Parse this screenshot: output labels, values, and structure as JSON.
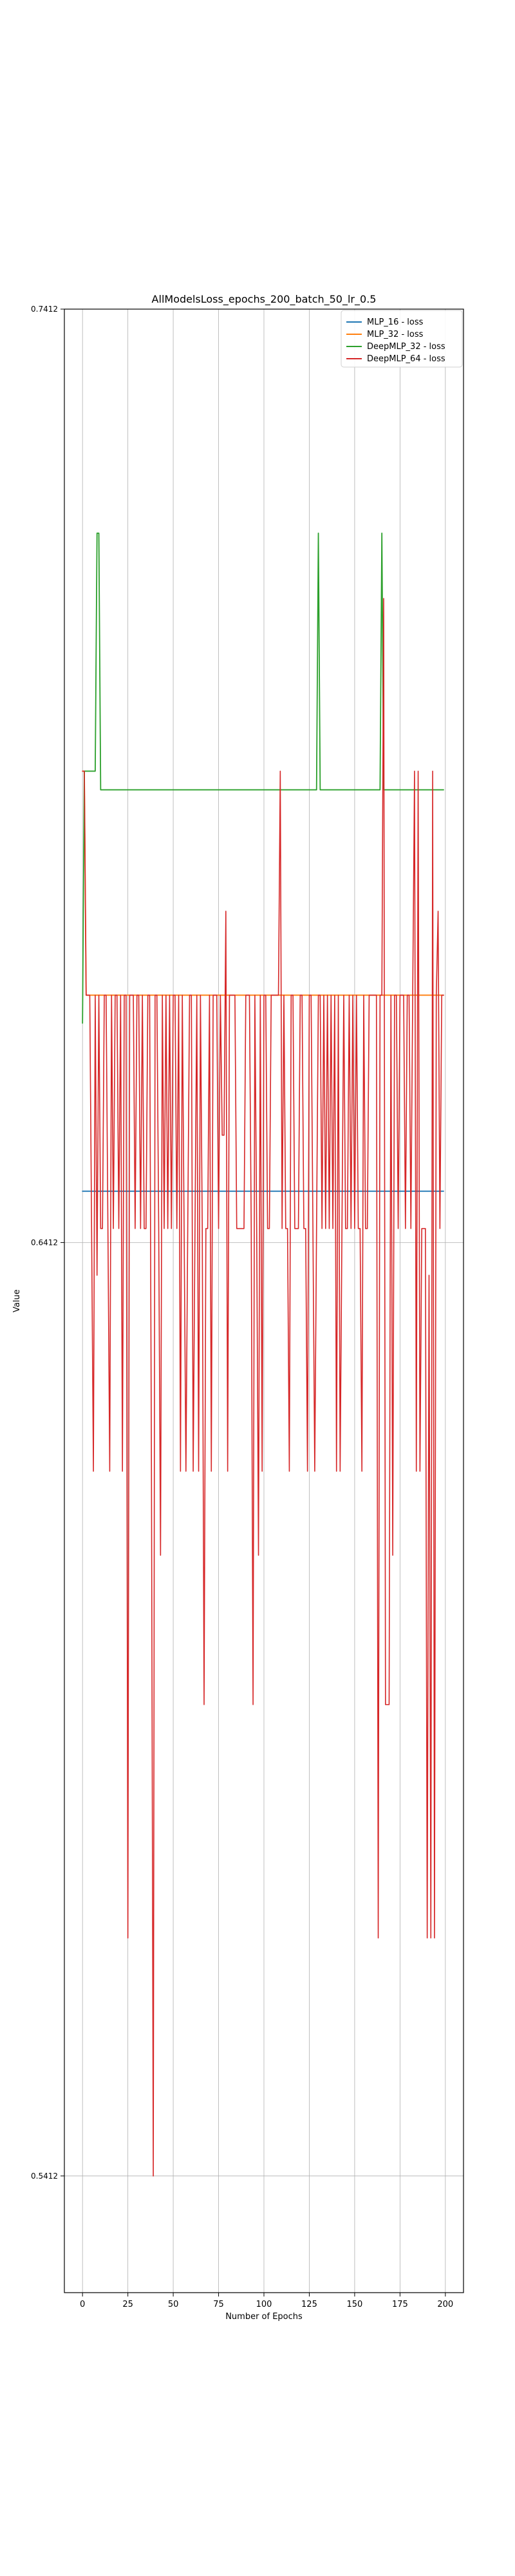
{
  "chart_data": {
    "type": "line",
    "title": "AllModelsLoss_epochs_200_batch_50_lr_0.5",
    "xlabel": "Number of Epochs",
    "ylabel": "Value",
    "xlim": [
      -10,
      210
    ],
    "ylim": [
      0.5287,
      0.7412
    ],
    "x_ticks": [
      0,
      25,
      50,
      75,
      100,
      125,
      150,
      175,
      200
    ],
    "x_tick_labels": [
      "0",
      "25",
      "50",
      "75",
      "100",
      "125",
      "150",
      "175",
      "200"
    ],
    "y_ticks": [
      0.5412,
      0.6412,
      0.7412
    ],
    "y_tick_labels": [
      "0.5412",
      "0.6412",
      "0.7412"
    ],
    "grid": true,
    "legend_position": "top-right",
    "series": [
      {
        "name": "MLP_16 - loss",
        "color": "#1f77b4",
        "segments": [
          [
            0,
            0.6467
          ],
          [
            199,
            0.6467
          ]
        ]
      },
      {
        "name": "MLP_32 - loss",
        "color": "#ff7f0e",
        "segments": [
          [
            0,
            0.6917
          ],
          [
            1,
            0.6917
          ],
          [
            2,
            0.6677
          ],
          [
            199,
            0.6677
          ]
        ]
      },
      {
        "name": "DeepMLP_32 - loss",
        "color": "#2ca02c",
        "segments": [
          [
            0,
            0.6647
          ],
          [
            1,
            0.6917
          ],
          [
            7,
            0.6917
          ],
          [
            8,
            0.7172
          ],
          [
            9,
            0.7172
          ],
          [
            10,
            0.6897
          ],
          [
            129,
            0.6897
          ],
          [
            130,
            0.7172
          ],
          [
            131,
            0.6897
          ],
          [
            164,
            0.6897
          ],
          [
            165,
            0.7172
          ],
          [
            166,
            0.6897
          ],
          [
            199,
            0.6897
          ]
        ]
      },
      {
        "name": "DeepMLP_64 - loss",
        "color": "#d62728",
        "segments": [
          [
            0,
            0.6917
          ],
          [
            1,
            0.6917
          ],
          [
            2,
            0.6677
          ],
          [
            3,
            0.6677
          ],
          [
            4,
            0.6677
          ],
          [
            5,
            0.6427
          ],
          [
            6,
            0.6167
          ],
          [
            7,
            0.6677
          ],
          [
            8,
            0.6377
          ],
          [
            9,
            0.6677
          ],
          [
            10,
            0.6427
          ],
          [
            11,
            0.6427
          ],
          [
            12,
            0.6677
          ],
          [
            13,
            0.6677
          ],
          [
            14,
            0.6427
          ],
          [
            15,
            0.6167
          ],
          [
            16,
            0.6677
          ],
          [
            17,
            0.6427
          ],
          [
            18,
            0.6677
          ],
          [
            19,
            0.6677
          ],
          [
            20,
            0.6427
          ],
          [
            21,
            0.6677
          ],
          [
            22,
            0.6167
          ],
          [
            23,
            0.6677
          ],
          [
            24,
            0.6677
          ],
          [
            25,
            0.5667
          ],
          [
            26,
            0.6677
          ],
          [
            27,
            0.6677
          ],
          [
            28,
            0.6677
          ],
          [
            29,
            0.6427
          ],
          [
            30,
            0.6677
          ],
          [
            31,
            0.6677
          ],
          [
            32,
            0.6427
          ],
          [
            33,
            0.6677
          ],
          [
            34,
            0.6427
          ],
          [
            35,
            0.6427
          ],
          [
            36,
            0.6677
          ],
          [
            37,
            0.6677
          ],
          [
            38,
            0.6167
          ],
          [
            39,
            0.5412
          ],
          [
            40,
            0.6677
          ],
          [
            41,
            0.6677
          ],
          [
            42,
            0.6427
          ],
          [
            43,
            0.6077
          ],
          [
            44,
            0.6677
          ],
          [
            45,
            0.6427
          ],
          [
            46,
            0.6677
          ],
          [
            47,
            0.6427
          ],
          [
            48,
            0.6677
          ],
          [
            49,
            0.6427
          ],
          [
            50,
            0.6677
          ],
          [
            51,
            0.6677
          ],
          [
            52,
            0.6427
          ],
          [
            53,
            0.6677
          ],
          [
            54,
            0.6167
          ],
          [
            55,
            0.6677
          ],
          [
            56,
            0.6427
          ],
          [
            57,
            0.6167
          ],
          [
            58,
            0.6427
          ],
          [
            59,
            0.6677
          ],
          [
            60,
            0.6677
          ],
          [
            61,
            0.6167
          ],
          [
            62,
            0.6427
          ],
          [
            63,
            0.6677
          ],
          [
            64,
            0.6167
          ],
          [
            65,
            0.6677
          ],
          [
            66,
            0.6427
          ],
          [
            67,
            0.5917
          ],
          [
            68,
            0.6427
          ],
          [
            69,
            0.6427
          ],
          [
            70,
            0.6677
          ],
          [
            71,
            0.6167
          ],
          [
            72,
            0.6677
          ],
          [
            73,
            0.6677
          ],
          [
            74,
            0.6677
          ],
          [
            75,
            0.6427
          ],
          [
            76,
            0.6677
          ],
          [
            77,
            0.6527
          ],
          [
            78,
            0.6527
          ],
          [
            79,
            0.6767
          ],
          [
            80,
            0.6167
          ],
          [
            81,
            0.6677
          ],
          [
            82,
            0.6677
          ],
          [
            83,
            0.6677
          ],
          [
            84,
            0.6677
          ],
          [
            85,
            0.6427
          ],
          [
            86,
            0.6427
          ],
          [
            87,
            0.6427
          ],
          [
            88,
            0.6427
          ],
          [
            89,
            0.6427
          ],
          [
            90,
            0.6677
          ],
          [
            91,
            0.6677
          ],
          [
            92,
            0.6677
          ],
          [
            93,
            0.6427
          ],
          [
            94,
            0.5917
          ],
          [
            95,
            0.6677
          ],
          [
            96,
            0.6427
          ],
          [
            97,
            0.6077
          ],
          [
            98,
            0.6677
          ],
          [
            99,
            0.6167
          ],
          [
            100,
            0.6677
          ],
          [
            101,
            0.6677
          ],
          [
            102,
            0.6427
          ],
          [
            103,
            0.6427
          ],
          [
            104,
            0.6677
          ],
          [
            105,
            0.6677
          ],
          [
            106,
            0.6677
          ],
          [
            107,
            0.6677
          ],
          [
            108,
            0.6677
          ],
          [
            109,
            0.6917
          ],
          [
            110,
            0.6427
          ],
          [
            111,
            0.6677
          ],
          [
            112,
            0.6427
          ],
          [
            113,
            0.6427
          ],
          [
            114,
            0.6167
          ],
          [
            115,
            0.6677
          ],
          [
            116,
            0.6677
          ],
          [
            117,
            0.6427
          ],
          [
            118,
            0.6427
          ],
          [
            119,
            0.6427
          ],
          [
            120,
            0.6677
          ],
          [
            121,
            0.6677
          ],
          [
            122,
            0.6427
          ],
          [
            123,
            0.6427
          ],
          [
            124,
            0.6167
          ],
          [
            125,
            0.6677
          ],
          [
            126,
            0.6677
          ],
          [
            127,
            0.6427
          ],
          [
            128,
            0.6167
          ],
          [
            129,
            0.6427
          ],
          [
            130,
            0.6677
          ],
          [
            131,
            0.6677
          ],
          [
            132,
            0.6427
          ],
          [
            133,
            0.6677
          ],
          [
            134,
            0.6427
          ],
          [
            135,
            0.6677
          ],
          [
            136,
            0.6427
          ],
          [
            137,
            0.6677
          ],
          [
            138,
            0.6427
          ],
          [
            139,
            0.6677
          ],
          [
            140,
            0.6167
          ],
          [
            141,
            0.6677
          ],
          [
            142,
            0.6167
          ],
          [
            143,
            0.6427
          ],
          [
            144,
            0.6677
          ],
          [
            145,
            0.6427
          ],
          [
            146,
            0.6427
          ],
          [
            147,
            0.6677
          ],
          [
            148,
            0.6427
          ],
          [
            149,
            0.6677
          ],
          [
            150,
            0.6427
          ],
          [
            151,
            0.6677
          ],
          [
            152,
            0.6427
          ],
          [
            153,
            0.6427
          ],
          [
            154,
            0.6167
          ],
          [
            155,
            0.6677
          ],
          [
            156,
            0.6427
          ],
          [
            157,
            0.6427
          ],
          [
            158,
            0.6677
          ],
          [
            159,
            0.6677
          ],
          [
            160,
            0.6677
          ],
          [
            161,
            0.6677
          ],
          [
            162,
            0.6677
          ],
          [
            163,
            0.5667
          ],
          [
            164,
            0.6677
          ],
          [
            165,
            0.6677
          ],
          [
            166,
            0.7102
          ],
          [
            167,
            0.5917
          ],
          [
            168,
            0.5917
          ],
          [
            169,
            0.5917
          ],
          [
            170,
            0.6677
          ],
          [
            171,
            0.6077
          ],
          [
            172,
            0.6677
          ],
          [
            173,
            0.6677
          ],
          [
            174,
            0.6427
          ],
          [
            175,
            0.6677
          ],
          [
            176,
            0.6677
          ],
          [
            177,
            0.6677
          ],
          [
            178,
            0.6427
          ],
          [
            179,
            0.6677
          ],
          [
            180,
            0.6677
          ],
          [
            181,
            0.6427
          ],
          [
            182,
            0.6677
          ],
          [
            183,
            0.6917
          ],
          [
            184,
            0.6167
          ],
          [
            185,
            0.6917
          ],
          [
            186,
            0.6167
          ],
          [
            187,
            0.6427
          ],
          [
            188,
            0.6427
          ],
          [
            189,
            0.6427
          ],
          [
            190,
            0.5667
          ],
          [
            191,
            0.6377
          ],
          [
            192,
            0.5667
          ],
          [
            193,
            0.6917
          ],
          [
            194,
            0.5667
          ],
          [
            195,
            0.6677
          ],
          [
            196,
            0.6767
          ],
          [
            197,
            0.6427
          ],
          [
            198,
            0.6677
          ],
          [
            199,
            0.6677
          ]
        ]
      }
    ]
  }
}
